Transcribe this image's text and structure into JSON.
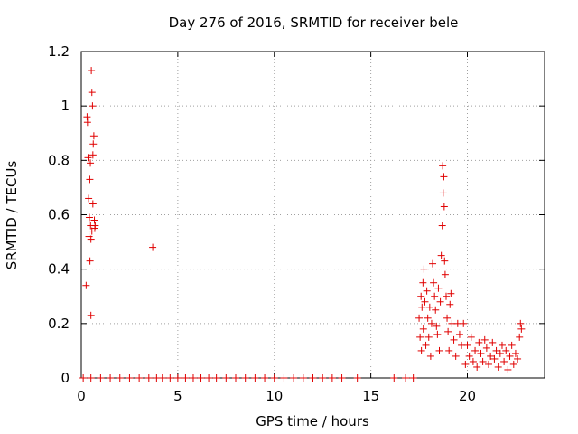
{
  "chart_data": {
    "type": "scatter",
    "title": "Day 276 of 2016, SRMTID for receiver bele",
    "xlabel": "GPS time / hours",
    "ylabel": "SRMTID / TECUs",
    "xlim": [
      0,
      24
    ],
    "ylim": [
      0,
      1.2
    ],
    "xticks": [
      "0",
      "5",
      "10",
      "15",
      "20"
    ],
    "yticks": [
      "0",
      "0.2",
      "0.4",
      "0.6",
      "0.8",
      "1",
      "1.2"
    ],
    "grid": true,
    "marker": "+",
    "series": [
      {
        "name": "SRMTID",
        "color": "#e00000",
        "x": [
          0.25,
          0.3,
          0.32,
          0.35,
          0.38,
          0.4,
          0.42,
          0.44,
          0.45,
          0.47,
          0.48,
          0.5,
          0.5,
          0.52,
          0.55,
          0.55,
          0.58,
          0.6,
          0.6,
          0.62,
          0.65,
          0.68,
          0.7,
          0.72,
          3.7,
          17.5,
          17.55,
          17.6,
          17.62,
          17.65,
          17.7,
          17.72,
          17.75,
          17.8,
          17.85,
          17.9,
          17.95,
          18.0,
          18.05,
          18.1,
          18.15,
          18.2,
          18.25,
          18.3,
          18.35,
          18.4,
          18.45,
          18.5,
          18.55,
          18.6,
          18.65,
          18.7,
          18.72,
          18.75,
          18.78,
          18.8,
          18.82,
          18.85,
          18.9,
          18.95,
          19.0,
          19.05,
          19.1,
          19.15,
          19.2,
          19.3,
          19.4,
          19.5,
          19.6,
          19.7,
          19.8,
          19.9,
          20.0,
          20.1,
          20.2,
          20.3,
          20.4,
          20.5,
          20.6,
          20.7,
          20.8,
          20.9,
          21.0,
          21.1,
          21.2,
          21.3,
          21.4,
          21.5,
          21.6,
          21.7,
          21.8,
          21.9,
          22.0,
          22.1,
          22.2,
          22.3,
          22.4,
          22.5,
          22.6,
          22.7,
          22.75,
          22.8,
          0.1,
          0.5,
          1.0,
          1.5,
          2.0,
          2.5,
          3.0,
          3.5,
          3.9,
          4.2,
          4.6,
          5.0,
          5.4,
          5.8,
          6.2,
          6.6,
          7.0,
          7.5,
          8.0,
          8.5,
          9.0,
          9.5,
          10.0,
          10.5,
          11.0,
          11.5,
          12.0,
          12.5,
          13.0,
          13.5,
          14.3,
          16.2,
          16.8,
          17.2
        ],
        "y": [
          0.34,
          0.96,
          0.94,
          0.81,
          0.66,
          0.52,
          0.59,
          0.73,
          0.43,
          0.79,
          0.56,
          0.51,
          0.23,
          1.13,
          1.05,
          0.54,
          1.0,
          0.64,
          0.82,
          0.86,
          0.89,
          0.58,
          0.55,
          0.56,
          0.48,
          0.22,
          0.15,
          0.3,
          0.1,
          0.26,
          0.35,
          0.18,
          0.4,
          0.28,
          0.12,
          0.32,
          0.22,
          0.15,
          0.26,
          0.08,
          0.2,
          0.42,
          0.35,
          0.3,
          0.25,
          0.19,
          0.16,
          0.33,
          0.1,
          0.28,
          0.45,
          0.56,
          0.78,
          0.68,
          0.74,
          0.63,
          0.43,
          0.38,
          0.3,
          0.22,
          0.17,
          0.1,
          0.27,
          0.31,
          0.2,
          0.14,
          0.08,
          0.2,
          0.16,
          0.12,
          0.2,
          0.05,
          0.12,
          0.08,
          0.15,
          0.06,
          0.1,
          0.04,
          0.13,
          0.09,
          0.06,
          0.14,
          0.11,
          0.05,
          0.08,
          0.13,
          0.07,
          0.1,
          0.04,
          0.09,
          0.12,
          0.06,
          0.1,
          0.03,
          0.08,
          0.12,
          0.05,
          0.09,
          0.07,
          0.15,
          0.2,
          0.18,
          0,
          0,
          0,
          0,
          0,
          0,
          0,
          0,
          0,
          0,
          0,
          0,
          0,
          0,
          0,
          0,
          0,
          0,
          0,
          0,
          0,
          0,
          0,
          0,
          0,
          0,
          0,
          0,
          0,
          0,
          0,
          0,
          0,
          0
        ]
      }
    ]
  }
}
